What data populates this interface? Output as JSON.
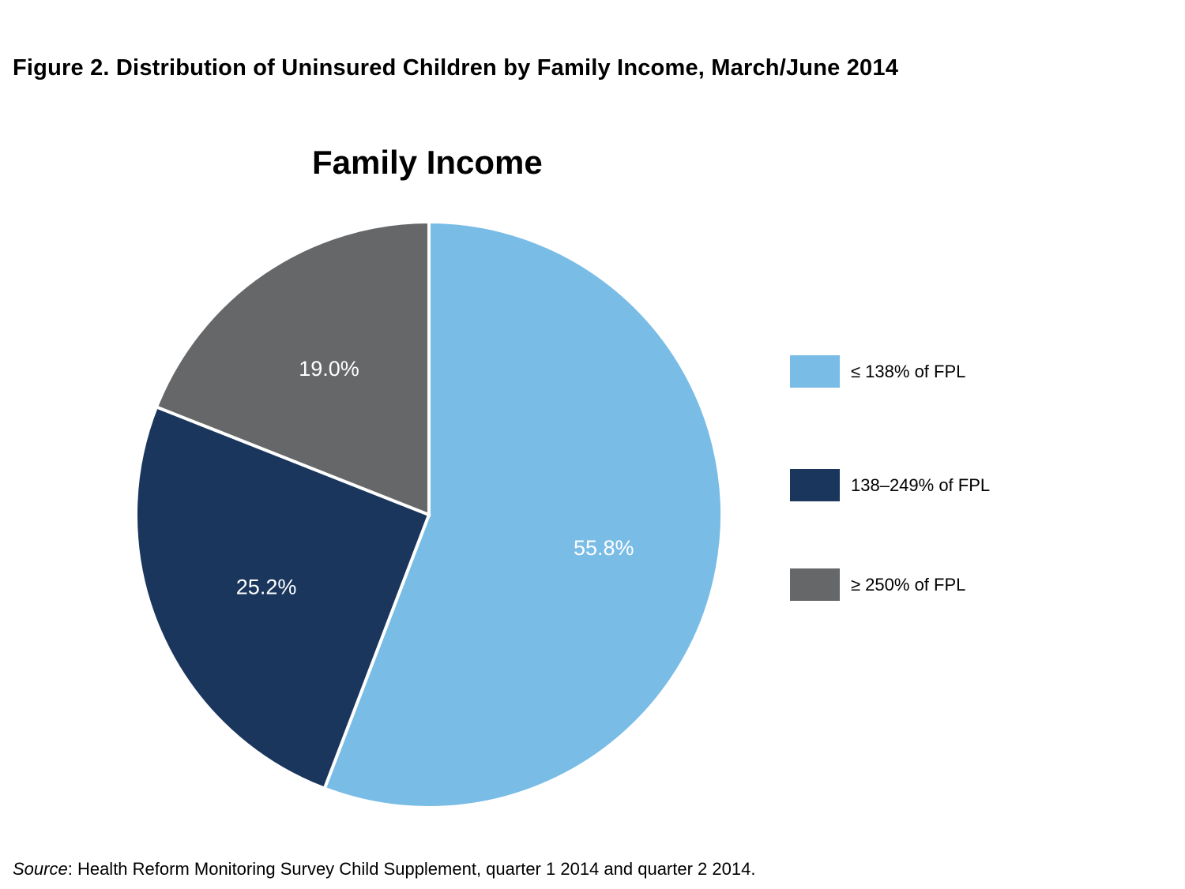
{
  "figure_title": "Figure 2. Distribution of Uninsured Children by Family Income, March/June 2014",
  "source": {
    "prefix": "Source",
    "text": ": Health Reform Monitoring Survey Child Supplement, quarter 1 2014 and quarter 2 2014."
  },
  "chart_data": {
    "type": "pie",
    "title": "Family Income",
    "legend_position": "right",
    "start_angle": "12 o'clock",
    "direction": "clockwise",
    "slices": [
      {
        "label": "≤ 138% of FPL",
        "value": 55.8,
        "value_label": "55.8%",
        "color": "#79BCE6"
      },
      {
        "label": "138–249% of FPL",
        "value": 25.2,
        "value_label": "25.2%",
        "color": "#1A365D"
      },
      {
        "label": "≥ 250% of FPL",
        "value": 19.0,
        "value_label": "19.0%",
        "color": "#666769"
      }
    ]
  }
}
